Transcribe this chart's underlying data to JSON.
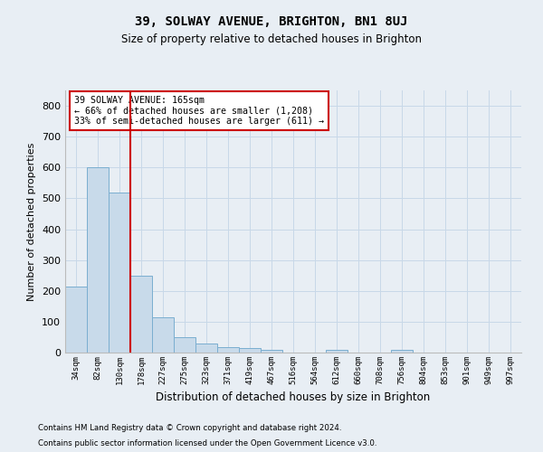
{
  "title1": "39, SOLWAY AVENUE, BRIGHTON, BN1 8UJ",
  "title2": "Size of property relative to detached houses in Brighton",
  "xlabel": "Distribution of detached houses by size in Brighton",
  "ylabel": "Number of detached properties",
  "bar_labels": [
    "34sqm",
    "82sqm",
    "130sqm",
    "178sqm",
    "227sqm",
    "275sqm",
    "323sqm",
    "371sqm",
    "419sqm",
    "467sqm",
    "516sqm",
    "564sqm",
    "612sqm",
    "660sqm",
    "708sqm",
    "756sqm",
    "804sqm",
    "853sqm",
    "901sqm",
    "949sqm",
    "997sqm"
  ],
  "bar_values": [
    215,
    600,
    520,
    250,
    115,
    50,
    30,
    18,
    15,
    10,
    0,
    0,
    8,
    0,
    0,
    8,
    0,
    0,
    0,
    0,
    0
  ],
  "bar_color": "#c8daea",
  "bar_edge_color": "#7aaed0",
  "grid_color": "#c8d8e8",
  "ylim": [
    0,
    850
  ],
  "yticks": [
    0,
    100,
    200,
    300,
    400,
    500,
    600,
    700,
    800
  ],
  "red_line_x": 2.5,
  "annotation_text1": "39 SOLWAY AVENUE: 165sqm",
  "annotation_text2": "← 66% of detached houses are smaller (1,208)",
  "annotation_text3": "33% of semi-detached houses are larger (611) →",
  "annotation_box_color": "#ffffff",
  "annotation_box_edge_color": "#cc0000",
  "red_line_color": "#cc0000",
  "footnote1": "Contains HM Land Registry data © Crown copyright and database right 2024.",
  "footnote2": "Contains public sector information licensed under the Open Government Licence v3.0.",
  "bg_color": "#e8eef4",
  "plot_bg_color": "#e8eef4"
}
